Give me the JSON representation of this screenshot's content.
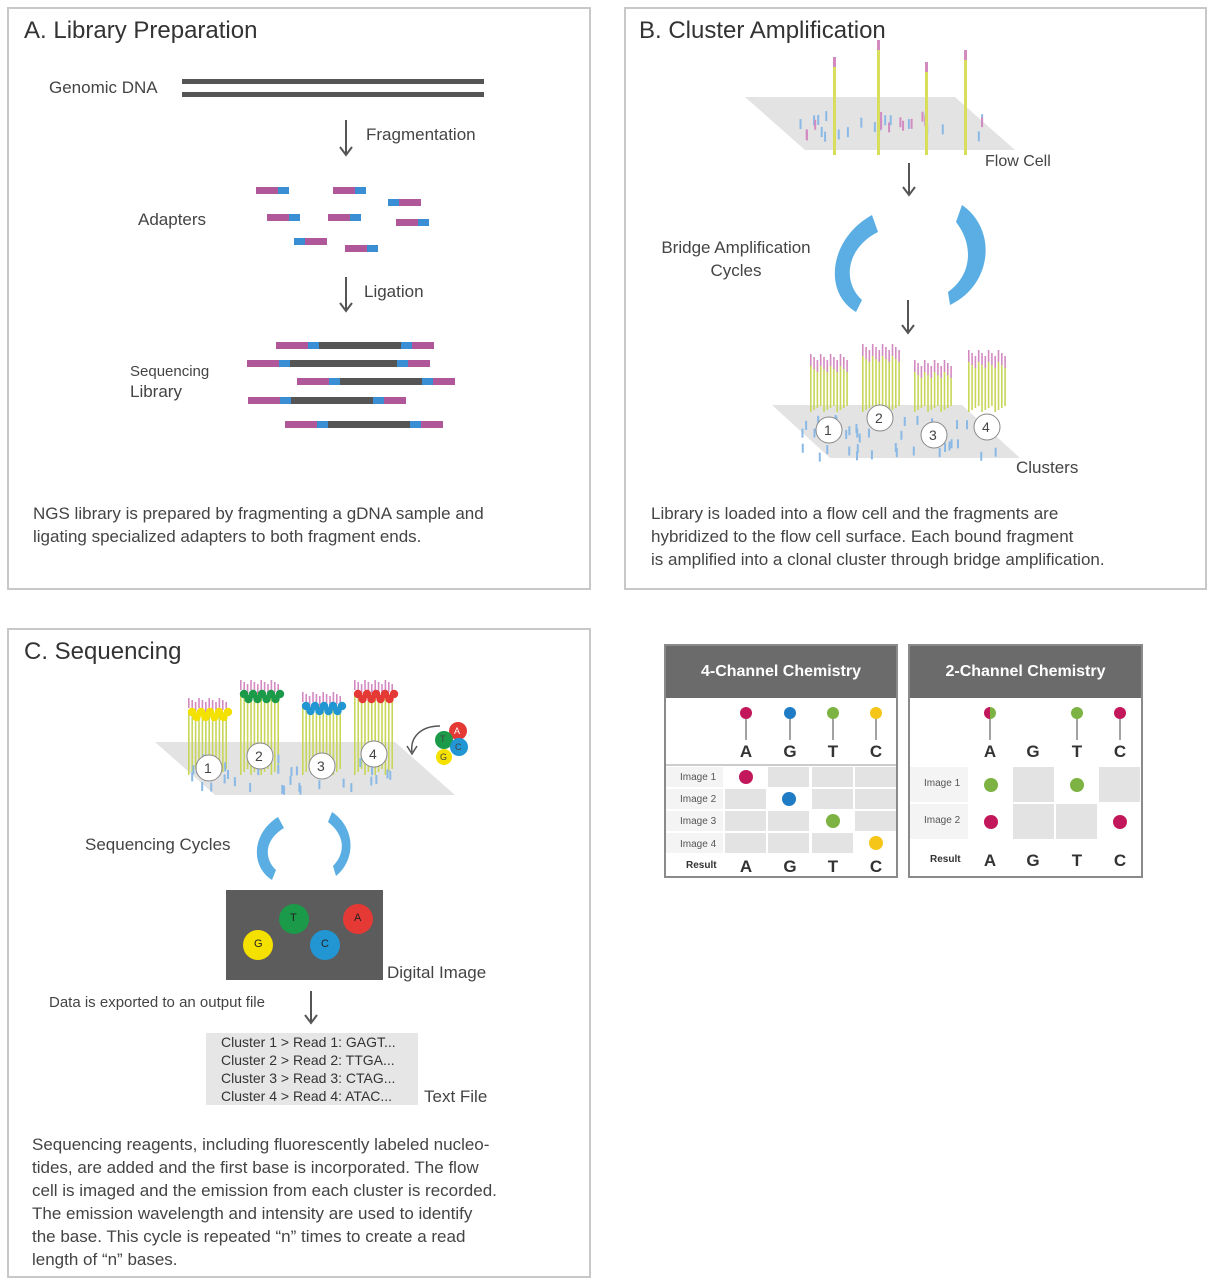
{
  "panelA": {
    "title": "A. Library Preparation",
    "genomic_dna": "Genomic DNA",
    "fragmentation": "Fragmentation",
    "adapters": "Adapters",
    "ligation": "Ligation",
    "seq_library_1": "Sequencing",
    "seq_library_2": "Library",
    "desc": [
      "NGS library is prepared by fragmenting a gDNA sample and",
      "ligating specialized adapters to both fragment ends."
    ]
  },
  "panelB": {
    "title": "B. Cluster Amplification",
    "flow_cell": "Flow Cell",
    "bridge_1": "Bridge Amplification",
    "bridge_2": "Cycles",
    "clusters": "Clusters",
    "cluster_nums": [
      "1",
      "2",
      "3",
      "4"
    ],
    "desc": [
      "Library is loaded into a flow cell and the fragments are",
      "hybridized to the flow cell surface. Each bound fragment",
      "is amplified into a clonal cluster through bridge amplification."
    ]
  },
  "panelC": {
    "title": "C. Sequencing",
    "cluster_nums": [
      "1",
      "2",
      "3",
      "4"
    ],
    "nucleotides": [
      "T",
      "A",
      "C",
      "G"
    ],
    "sequencing_cycles": "Sequencing Cycles",
    "digital_image": "Digital Image",
    "image_spots": [
      "T",
      "A",
      "G",
      "C"
    ],
    "export": "Data is exported to an output file",
    "text_file_lines": [
      "Cluster 1 > Read 1: GAGT...",
      "Cluster 2 > Read 2: TTGA...",
      "Cluster 3 > Read 3: CTAG...",
      "Cluster 4 > Read 4: ATAC..."
    ],
    "text_file": "Text File",
    "desc": [
      "Sequencing reagents, including fluorescently labeled nucleo-",
      "tides, are added and the first base is incorporated. The flow",
      "cell is imaged and the emission from each cluster is recorded.",
      "The emission wavelength and intensity are used to identify",
      "the base. This cycle is repeated “n” times to create a read",
      "length of “n” bases."
    ]
  },
  "chem4": {
    "title": "4-Channel Chemistry",
    "bases": [
      "A",
      "G",
      "T",
      "C"
    ],
    "rows": [
      "Image 1",
      "Image 2",
      "Image 3",
      "Image 4"
    ],
    "result_label": "Result",
    "result": [
      "A",
      "G",
      "T",
      "C"
    ]
  },
  "chem2": {
    "title": "2-Channel Chemistry",
    "bases": [
      "A",
      "G",
      "T",
      "C"
    ],
    "rows": [
      "Image 1",
      "Image 2"
    ],
    "result_label": "Result",
    "result": [
      "A",
      "G",
      "T",
      "C"
    ]
  },
  "colors": {
    "magenta": "#c2185b",
    "blue": "#1e7bc4",
    "green": "#7cb342",
    "yellow": "#f5c518",
    "red": "#e53935",
    "dark_green": "#1b9a4a",
    "adapter_pink": "#b0579a",
    "adapter_blue": "#3a8fd4",
    "dna_gray": "#555555",
    "arrow_blue": "#5aaee3"
  }
}
